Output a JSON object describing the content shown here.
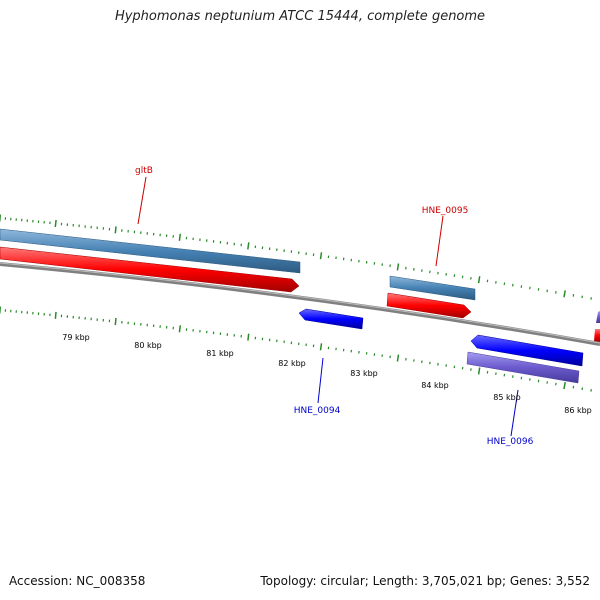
{
  "title": "Hyphomonas neptunium ATCC 15444, complete genome",
  "footer": {
    "accession": "Accession: NC_008358",
    "summary": "Topology: circular; Length: 3,705,021 bp; Genes: 3,552"
  },
  "colors": {
    "backbone": "#808080",
    "tick": "#2a8a2a",
    "forward_cds": "#ff0000",
    "forward_gene": "#4682b4",
    "reverse_cds": "#0000ff",
    "reverse_gene": "#6a5acd",
    "forward_label": "#cc0000",
    "reverse_label": "#0000cc"
  },
  "scale_labels": [
    "79 kbp",
    "80 kbp",
    "81 kbp",
    "82 kbp",
    "83 kbp",
    "84 kbp",
    "85 kbp",
    "86 kbp"
  ],
  "gene_labels": {
    "gltB": "gltB",
    "HNE_0095": "HNE_0095",
    "HNE_0094": "HNE_0094",
    "HNE_0096": "HNE_0096"
  }
}
